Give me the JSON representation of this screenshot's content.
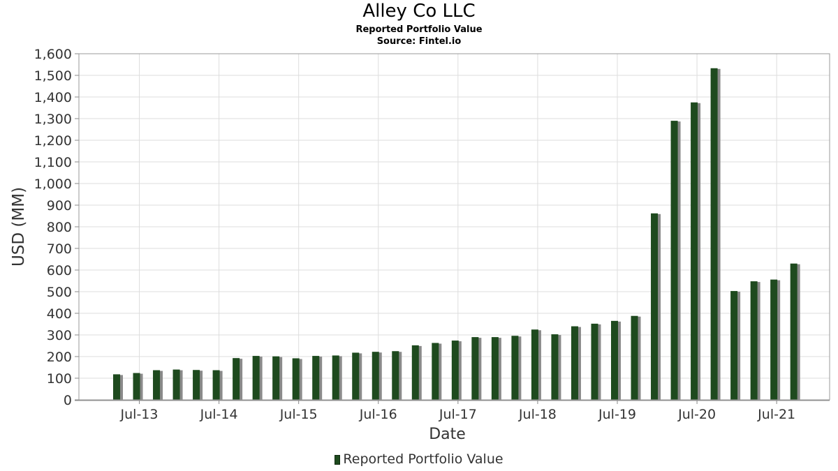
{
  "chart_data": {
    "type": "bar",
    "title": "Alley Co LLC",
    "subtitle": "Reported Portfolio Value",
    "source": "Source: Fintel.io",
    "xlabel": "Date",
    "ylabel": "USD (MM)",
    "ylim": [
      0,
      1600
    ],
    "yticks": [
      0,
      100,
      200,
      300,
      400,
      500,
      600,
      700,
      800,
      900,
      1000,
      1100,
      1200,
      1300,
      1400,
      1500,
      1600
    ],
    "ytick_labels": [
      "0",
      "100",
      "200",
      "300",
      "400",
      "500",
      "600",
      "700",
      "800",
      "900",
      "1,000",
      "1,100",
      "1,200",
      "1,300",
      "1,400",
      "1,500",
      "1,600"
    ],
    "xtick_labels": [
      "Jul-13",
      "Jul-14",
      "Jul-15",
      "Jul-16",
      "Jul-17",
      "Jul-18",
      "Jul-19",
      "Jul-20",
      "Jul-21"
    ],
    "categories": [
      "2013-06",
      "2013-09",
      "2013-12",
      "2014-03",
      "2014-06",
      "2014-09",
      "2014-12",
      "2015-03",
      "2015-06",
      "2015-09",
      "2015-12",
      "2016-03",
      "2016-06",
      "2016-09",
      "2016-12",
      "2017-03",
      "2017-06",
      "2017-09",
      "2017-12",
      "2018-03",
      "2018-06",
      "2018-09",
      "2018-12",
      "2019-03",
      "2019-06",
      "2019-09",
      "2019-12",
      "2020-03",
      "2020-06",
      "2020-09",
      "2020-12",
      "2021-03",
      "2021-06",
      "2021-09",
      "2021-12"
    ],
    "series": [
      {
        "name": "Reported Portfolio Value",
        "color": "#1e4a1e",
        "values": [
          118,
          124,
          137,
          140,
          138,
          137,
          193,
          203,
          201,
          192,
          203,
          205,
          218,
          222,
          225,
          252,
          263,
          274,
          290,
          290,
          296,
          325,
          303,
          340,
          352,
          365,
          388,
          862,
          1290,
          1375,
          1533,
          503,
          548,
          556,
          630
        ]
      }
    ],
    "grid": true,
    "legend": "bottom-center"
  }
}
